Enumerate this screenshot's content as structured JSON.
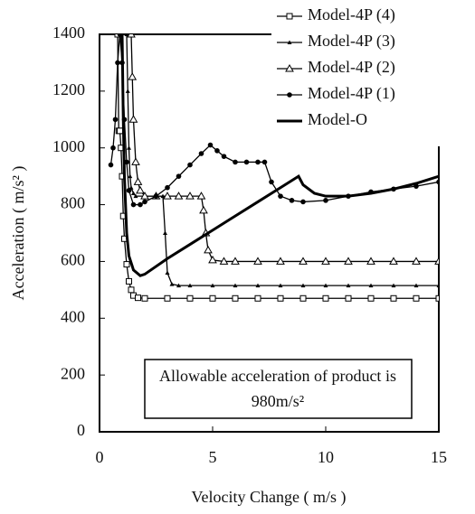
{
  "chart_data": {
    "type": "line",
    "x_label": "Velocity Change ( m/s )",
    "y_label": "Acceleration ( m/s² )",
    "annotation": [
      "Allowable acceleration of product is",
      "980m/s²"
    ],
    "xlim": [
      0,
      15
    ],
    "xticks": [
      0,
      5,
      10,
      15
    ],
    "ylim": [
      0,
      1400
    ],
    "yticks": [
      0,
      200,
      400,
      600,
      800,
      1000,
      1200,
      1400
    ],
    "grid": false,
    "legend": "upper right",
    "series": [
      {
        "name": "Model-4P (4)",
        "color": "#000000",
        "marker": "square-open",
        "x": [
          0.8,
          0.85,
          0.9,
          0.95,
          1.0,
          1.05,
          1.1,
          1.2,
          1.3,
          1.4,
          1.5,
          1.7,
          2,
          3,
          4,
          5,
          6,
          7,
          8,
          9,
          10,
          11,
          12,
          13,
          14,
          15
        ],
        "values": [
          1400,
          1060,
          1060,
          1000,
          900,
          760,
          680,
          590,
          530,
          500,
          480,
          472,
          470,
          470,
          470,
          470,
          470,
          470,
          470,
          470,
          470,
          470,
          470,
          470,
          470,
          470
        ]
      },
      {
        "name": "Model-4P (3)",
        "color": "#000000",
        "marker": "triangle-small",
        "x": [
          1.2,
          1.25,
          1.3,
          1.35,
          1.4,
          1.5,
          1.6,
          2,
          2.5,
          2.8,
          2.9,
          3.0,
          3.2,
          3.5,
          4,
          5,
          6,
          7,
          8,
          9,
          10,
          11,
          12,
          13,
          14,
          15
        ],
        "values": [
          1400,
          1200,
          1000,
          900,
          860,
          840,
          830,
          830,
          830,
          830,
          700,
          560,
          520,
          515,
          515,
          515,
          515,
          515,
          515,
          515,
          515,
          515,
          515,
          515,
          515,
          515
        ]
      },
      {
        "name": "Model-4P (2)",
        "color": "#000000",
        "marker": "triangle-open",
        "x": [
          1.4,
          1.45,
          1.5,
          1.6,
          1.7,
          1.8,
          2,
          2.5,
          3,
          3.5,
          4,
          4.5,
          4.6,
          4.7,
          4.8,
          5,
          5.5,
          6,
          7,
          8,
          9,
          10,
          11,
          12,
          13,
          14,
          15
        ],
        "values": [
          1400,
          1250,
          1100,
          950,
          880,
          850,
          830,
          830,
          830,
          830,
          830,
          830,
          780,
          700,
          640,
          605,
          600,
          600,
          600,
          600,
          600,
          600,
          600,
          600,
          600,
          600,
          600
        ]
      },
      {
        "name": "Model-4P (1)",
        "color": "#000000",
        "marker": "circle-filled",
        "x": [
          0.5,
          0.6,
          0.7,
          0.8,
          0.9,
          1.0,
          1.1,
          1.2,
          1.3,
          1.5,
          1.8,
          2,
          2.5,
          3,
          3.5,
          4,
          4.5,
          4.9,
          5.2,
          5.5,
          6,
          6.5,
          7,
          7.3,
          7.6,
          8,
          8.5,
          9,
          10,
          11,
          12,
          13,
          14,
          15
        ],
        "values": [
          940,
          1000,
          1100,
          1300,
          1400,
          1300,
          1100,
          950,
          850,
          800,
          800,
          810,
          830,
          860,
          900,
          940,
          980,
          1010,
          990,
          970,
          950,
          950,
          950,
          950,
          880,
          830,
          815,
          810,
          815,
          830,
          845,
          855,
          865,
          880
        ]
      },
      {
        "name": "Model-O",
        "color": "#000000",
        "marker": "none",
        "x": [
          1.0,
          1.05,
          1.1,
          1.2,
          1.3,
          1.5,
          1.8,
          2,
          3,
          4,
          5,
          6,
          7,
          8,
          8.8,
          9,
          9.5,
          10,
          11,
          12,
          13,
          14,
          15
        ],
        "values": [
          1400,
          1100,
          900,
          700,
          620,
          570,
          550,
          555,
          610,
          660,
          710,
          760,
          810,
          860,
          900,
          870,
          840,
          830,
          830,
          840,
          855,
          875,
          900
        ]
      }
    ]
  }
}
